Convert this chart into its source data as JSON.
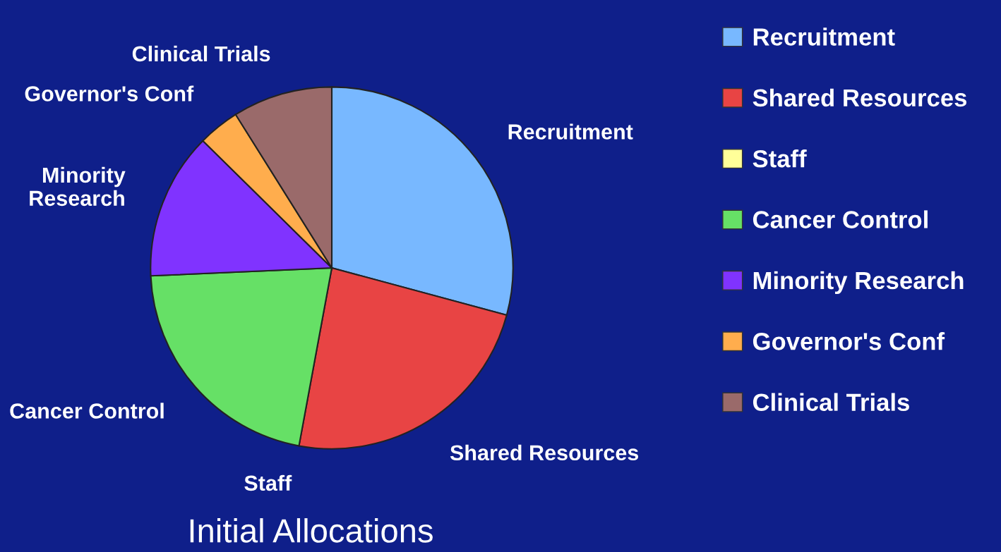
{
  "chart_data": {
    "type": "pie",
    "title": "Initial Allocations",
    "categories": [
      "Recruitment",
      "Shared Resources",
      "Staff",
      "Cancer Control",
      "Minority Research",
      "Governor's Conf",
      "Clinical Trials"
    ],
    "values": [
      29.2,
      23.7,
      0,
      21.4,
      13.1,
      3.7,
      8.9
    ],
    "colors": [
      "#78b8ff",
      "#e84444",
      "#ffff99",
      "#66e066",
      "#8033ff",
      "#ffad4d",
      "#9a6a6a"
    ],
    "legend": "right"
  }
}
